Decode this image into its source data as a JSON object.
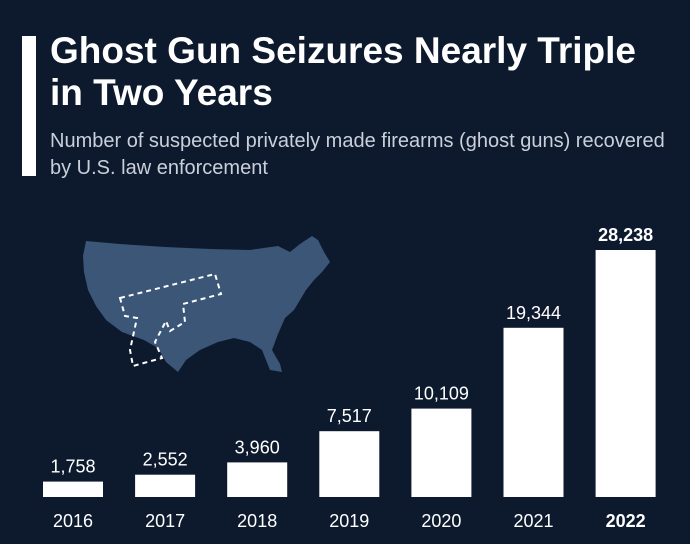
{
  "header": {
    "title": "Ghost Gun Seizures Nearly Triple in Two Years",
    "subtitle": "Number of suspected privately made firearms (ghost guns) recovered by U.S. law enforcement"
  },
  "colors": {
    "background": "#0d1a2e",
    "bars": "#ffffff",
    "map": "#3b5677",
    "text": "#ffffff",
    "subtitle": "#c9d0da"
  },
  "illustration": {
    "map_icon": "usa-map-icon",
    "gun_icon": "dashed-pistol-outline-icon"
  },
  "chart_data": {
    "type": "bar",
    "categories": [
      "2016",
      "2017",
      "2018",
      "2019",
      "2020",
      "2021",
      "2022"
    ],
    "values": [
      1758,
      2552,
      3960,
      7517,
      10109,
      19344,
      28238
    ],
    "value_labels": [
      "1,758",
      "2,552",
      "3,960",
      "7,517",
      "10,109",
      "19,344",
      "28,238"
    ],
    "highlight_category": "2022",
    "ylim": [
      0,
      28238
    ],
    "grid": false,
    "legend": "none"
  }
}
